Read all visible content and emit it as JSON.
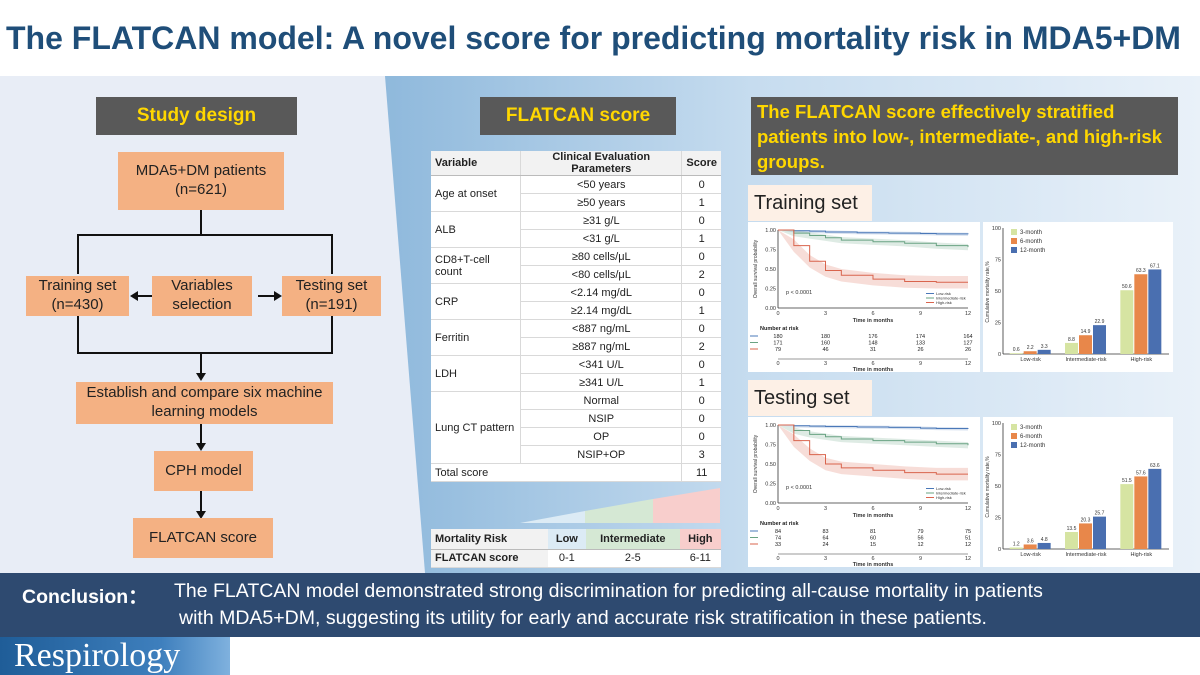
{
  "title": "The FLATCAN model: A novel score for predicting mortality risk in MDA5+DM",
  "study_design": {
    "heading": "Study design",
    "patients": "MDA5+DM patients (n=621)",
    "training": "Training set (n=430)",
    "variables": "Variables selection",
    "testing": "Testing set (n=191)",
    "ml_models": "Establish and compare six machine learning models",
    "cph": "CPH model",
    "flatcan": "FLATCAN score"
  },
  "score_table": {
    "heading": "FLATCAN score",
    "headers": [
      "Variable",
      "Clinical Evaluation Parameters",
      "Score"
    ],
    "groups": [
      {
        "variable": "Age at onset",
        "rows": [
          [
            "<50 years",
            "0"
          ],
          [
            "≥50 years",
            "1"
          ]
        ]
      },
      {
        "variable": "ALB",
        "rows": [
          [
            "≥31 g/L",
            "0"
          ],
          [
            "<31 g/L",
            "1"
          ]
        ]
      },
      {
        "variable": "CD8+T-cell count",
        "rows": [
          [
            "≥80 cells/μL",
            "0"
          ],
          [
            "<80 cells/μL",
            "2"
          ]
        ]
      },
      {
        "variable": "CRP",
        "rows": [
          [
            "<2.14 mg/dL",
            "0"
          ],
          [
            "≥2.14 mg/dL",
            "1"
          ]
        ]
      },
      {
        "variable": "Ferritin",
        "rows": [
          [
            "<887 ng/mL",
            "0"
          ],
          [
            "≥887 ng/mL",
            "2"
          ]
        ]
      },
      {
        "variable": "LDH",
        "rows": [
          [
            "<341 U/L",
            "0"
          ],
          [
            "≥341 U/L",
            "1"
          ]
        ]
      },
      {
        "variable": "Lung CT pattern",
        "rows": [
          [
            "Normal",
            "0"
          ],
          [
            "NSIP",
            "0"
          ],
          [
            "OP",
            "0"
          ],
          [
            "NSIP+OP",
            "3"
          ]
        ]
      }
    ],
    "total_label": "Total score",
    "total_value": "11"
  },
  "risk_table": {
    "headers": [
      "Mortality Risk",
      "Low",
      "Intermediate",
      "High"
    ],
    "row": [
      "FLATCAN score",
      "0-1",
      "2-5",
      "6-11"
    ],
    "colors": {
      "low": "#dcebf5",
      "intermediate": "#d5e8d4",
      "high": "#f8cecc"
    }
  },
  "finding": "The FLATCAN score effectively stratified patients into low-, intermediate-, and high-risk groups.",
  "training_label": "Training set",
  "testing_label": "Testing set",
  "km_common": {
    "ylabel": "Overall survival probability",
    "xlabel": "Time in months",
    "pvalue": "p < 0.0001",
    "legend": [
      "Low-risk",
      "Intermediate-risk",
      "High-risk"
    ],
    "nar_title": "Number at risk",
    "xticks": [
      "0",
      "3",
      "6",
      "9",
      "12"
    ],
    "yticks": [
      "0.00",
      "0.25",
      "0.50",
      "0.75",
      "1.00"
    ],
    "colors": {
      "low": "#4a78b8",
      "intermediate": "#6aa383",
      "high": "#d9644d"
    }
  },
  "training_nar": [
    [
      "180",
      "180",
      "176",
      "174",
      "164"
    ],
    [
      "171",
      "160",
      "148",
      "133",
      "127"
    ],
    [
      "79",
      "46",
      "31",
      "26",
      "26"
    ]
  ],
  "testing_nar": [
    [
      "84",
      "83",
      "81",
      "79",
      "75"
    ],
    [
      "74",
      "64",
      "60",
      "56",
      "51"
    ],
    [
      "33",
      "24",
      "15",
      "12",
      "12"
    ]
  ],
  "bar_common": {
    "ylabel": "Cumulative mortality rate,%",
    "legend": [
      "3-month",
      "6-month",
      "12-month"
    ],
    "categories": [
      "Low-risk",
      "Intermediate-risk",
      "High-risk"
    ],
    "yticks": [
      "0",
      "25",
      "50",
      "75",
      "100"
    ],
    "colors": [
      "#d6e4a2",
      "#e8874a",
      "#4a6fb0"
    ]
  },
  "chart_data": [
    {
      "type": "line",
      "panel": "Training set",
      "xlabel": "Time in months",
      "ylabel": "Overall survival probability",
      "xlim": [
        0,
        12
      ],
      "ylim": [
        0,
        1
      ],
      "series": [
        {
          "name": "Low-risk",
          "x": [
            0,
            1,
            2,
            3,
            5,
            7,
            9,
            10,
            12
          ],
          "y": [
            1.0,
            0.99,
            0.985,
            0.975,
            0.965,
            0.96,
            0.955,
            0.95,
            0.945
          ]
        },
        {
          "name": "Intermediate-risk",
          "x": [
            0,
            1,
            2,
            3,
            4,
            6,
            8,
            10,
            12
          ],
          "y": [
            1.0,
            0.96,
            0.93,
            0.9,
            0.87,
            0.85,
            0.83,
            0.8,
            0.78
          ]
        },
        {
          "name": "High-risk",
          "x": [
            0,
            1,
            2,
            3,
            4,
            6,
            8,
            10,
            12
          ],
          "y": [
            1.0,
            0.8,
            0.6,
            0.48,
            0.42,
            0.37,
            0.34,
            0.33,
            0.33
          ]
        }
      ]
    },
    {
      "type": "bar",
      "panel": "Training set",
      "ylabel": "Cumulative mortality rate,%",
      "categories": [
        "Low-risk",
        "Intermediate-risk",
        "High-risk"
      ],
      "ylim": [
        0,
        100
      ],
      "series": [
        {
          "name": "3-month",
          "values": [
            0.6,
            8.8,
            50.6
          ]
        },
        {
          "name": "6-month",
          "values": [
            2.2,
            14.9,
            63.3
          ]
        },
        {
          "name": "12-month",
          "values": [
            3.3,
            22.9,
            67.1
          ]
        }
      ]
    },
    {
      "type": "line",
      "panel": "Testing set",
      "xlabel": "Time in months",
      "ylabel": "Overall survival probability",
      "xlim": [
        0,
        12
      ],
      "ylim": [
        0,
        1
      ],
      "series": [
        {
          "name": "Low-risk",
          "x": [
            0,
            1,
            2,
            3,
            5,
            7,
            9,
            10,
            12
          ],
          "y": [
            1.0,
            0.99,
            0.985,
            0.98,
            0.975,
            0.97,
            0.96,
            0.955,
            0.95
          ]
        },
        {
          "name": "Intermediate-risk",
          "x": [
            0,
            1,
            2,
            3,
            4,
            6,
            8,
            10,
            12
          ],
          "y": [
            1.0,
            0.93,
            0.88,
            0.85,
            0.82,
            0.8,
            0.78,
            0.76,
            0.74
          ]
        },
        {
          "name": "High-risk",
          "x": [
            0,
            1,
            2,
            3,
            4,
            6,
            8,
            10,
            12
          ],
          "y": [
            1.0,
            0.8,
            0.62,
            0.5,
            0.45,
            0.42,
            0.39,
            0.37,
            0.37
          ]
        }
      ]
    },
    {
      "type": "bar",
      "panel": "Testing set",
      "ylabel": "Cumulative mortality rate,%",
      "categories": [
        "Low-risk",
        "Intermediate-risk",
        "High-risk"
      ],
      "ylim": [
        0,
        100
      ],
      "series": [
        {
          "name": "3-month",
          "values": [
            1.2,
            13.5,
            51.5
          ]
        },
        {
          "name": "6-month",
          "values": [
            3.6,
            20.3,
            57.6
          ]
        },
        {
          "name": "12-month",
          "values": [
            4.8,
            25.7,
            63.6
          ]
        }
      ]
    }
  ],
  "conclusion": {
    "label": "Conclusion：",
    "line1": "The FLATCAN model demonstrated strong discrimination for predicting all-cause mortality in patients",
    "line2": "with MDA5+DM, suggesting its utility for early and accurate risk stratification in these patients."
  },
  "journal": "Respirology"
}
